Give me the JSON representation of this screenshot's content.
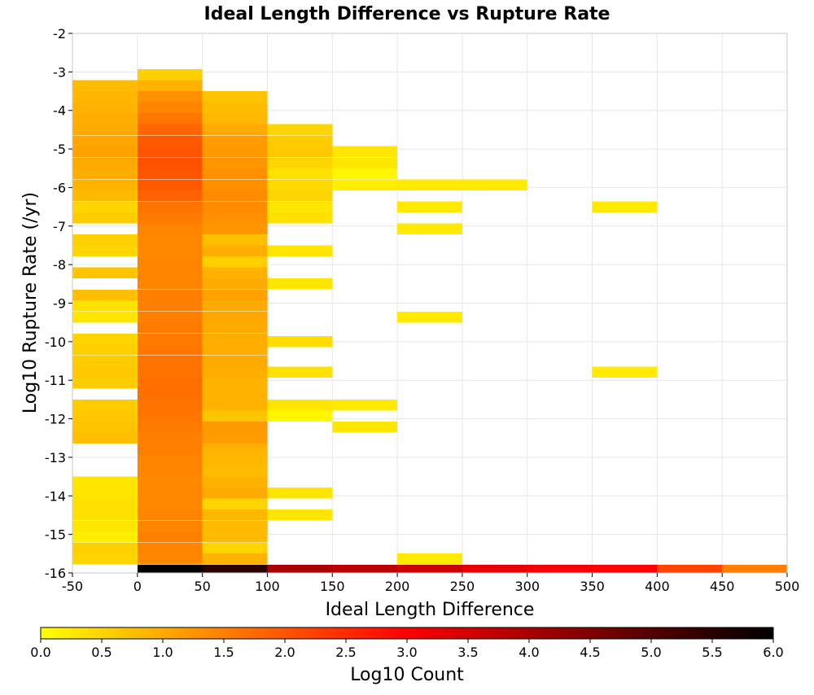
{
  "chart_data": {
    "type": "heatmap",
    "title": "Ideal Length Difference vs Rupture Rate",
    "xlabel": "Ideal Length Difference",
    "ylabel": "Log10 Rupture Rate (/yr)",
    "xlim": [
      -50,
      500
    ],
    "ylim": [
      -16,
      -2
    ],
    "x_ticks": [
      "-50",
      "0",
      "50",
      "100",
      "150",
      "200",
      "250",
      "300",
      "350",
      "400",
      "450",
      "500"
    ],
    "y_ticks": [
      "-2",
      "-3",
      "-4",
      "-5",
      "-6",
      "-7",
      "-8",
      "-9",
      "-10",
      "-11",
      "-12",
      "-13",
      "-14",
      "-15",
      "-16"
    ],
    "grid": true,
    "x_bin_width": 50,
    "y_bin_height": 0.2857,
    "colorbar": {
      "label": "Log10 Count",
      "range": [
        0.0,
        6.0
      ],
      "ticks": [
        "0.0",
        "0.5",
        "1.0",
        "1.5",
        "2.0",
        "2.5",
        "3.0",
        "3.5",
        "4.0",
        "4.5",
        "5.0",
        "5.5",
        "6.0"
      ],
      "colors": [
        "#ffff00",
        "#ff0000",
        "#000000"
      ]
    },
    "columns": [
      {
        "x": -25,
        "cells": [
          {
            "y": -3.36,
            "v": 0.8
          },
          {
            "y": -3.64,
            "v": 0.85
          },
          {
            "y": -3.93,
            "v": 0.9
          },
          {
            "y": -4.21,
            "v": 0.95
          },
          {
            "y": -4.5,
            "v": 1.0
          },
          {
            "y": -4.79,
            "v": 1.05
          },
          {
            "y": -5.07,
            "v": 1.1
          },
          {
            "y": -5.36,
            "v": 1.0
          },
          {
            "y": -5.64,
            "v": 0.95
          },
          {
            "y": -5.93,
            "v": 0.9
          },
          {
            "y": -6.21,
            "v": 0.8
          },
          {
            "y": -6.5,
            "v": 0.5
          },
          {
            "y": -6.79,
            "v": 0.6
          },
          {
            "y": -7.36,
            "v": 0.55
          },
          {
            "y": -7.64,
            "v": 0.5
          },
          {
            "y": -8.21,
            "v": 0.7
          },
          {
            "y": -8.79,
            "v": 0.75
          },
          {
            "y": -9.07,
            "v": 0.35
          },
          {
            "y": -9.36,
            "v": 0.3
          },
          {
            "y": -9.93,
            "v": 0.5
          },
          {
            "y": -10.21,
            "v": 0.55
          },
          {
            "y": -10.5,
            "v": 0.6
          },
          {
            "y": -10.79,
            "v": 0.65
          },
          {
            "y": -11.07,
            "v": 0.6
          },
          {
            "y": -11.64,
            "v": 0.6
          },
          {
            "y": -11.93,
            "v": 0.65
          },
          {
            "y": -12.21,
            "v": 0.7
          },
          {
            "y": -12.5,
            "v": 0.75
          },
          {
            "y": -13.64,
            "v": 0.3
          },
          {
            "y": -13.93,
            "v": 0.3
          },
          {
            "y": -14.21,
            "v": 0.35
          },
          {
            "y": -14.5,
            "v": 0.35
          },
          {
            "y": -14.79,
            "v": 0.3
          },
          {
            "y": -15.07,
            "v": 0.2
          },
          {
            "y": -15.36,
            "v": 0.55
          },
          {
            "y": -15.64,
            "v": 0.5
          }
        ]
      },
      {
        "x": 25,
        "cells": [
          {
            "y": -3.07,
            "v": 0.55
          },
          {
            "y": -3.36,
            "v": 0.9
          },
          {
            "y": -3.64,
            "v": 1.3
          },
          {
            "y": -3.93,
            "v": 1.45
          },
          {
            "y": -4.21,
            "v": 1.6
          },
          {
            "y": -4.5,
            "v": 1.8
          },
          {
            "y": -4.79,
            "v": 1.95
          },
          {
            "y": -5.07,
            "v": 2.0
          },
          {
            "y": -5.36,
            "v": 2.05
          },
          {
            "y": -5.64,
            "v": 2.0
          },
          {
            "y": -5.93,
            "v": 1.95
          },
          {
            "y": -6.21,
            "v": 1.85
          },
          {
            "y": -6.5,
            "v": 1.65
          },
          {
            "y": -6.79,
            "v": 1.55
          },
          {
            "y": -7.07,
            "v": 1.45
          },
          {
            "y": -7.36,
            "v": 1.4
          },
          {
            "y": -7.64,
            "v": 1.4
          },
          {
            "y": -7.93,
            "v": 1.45
          },
          {
            "y": -8.21,
            "v": 1.45
          },
          {
            "y": -8.5,
            "v": 1.45
          },
          {
            "y": -8.79,
            "v": 1.5
          },
          {
            "y": -9.07,
            "v": 1.5
          },
          {
            "y": -9.36,
            "v": 1.5
          },
          {
            "y": -9.64,
            "v": 1.55
          },
          {
            "y": -9.93,
            "v": 1.55
          },
          {
            "y": -10.21,
            "v": 1.6
          },
          {
            "y": -10.5,
            "v": 1.65
          },
          {
            "y": -10.79,
            "v": 1.65
          },
          {
            "y": -11.07,
            "v": 1.7
          },
          {
            "y": -11.36,
            "v": 1.7
          },
          {
            "y": -11.64,
            "v": 1.65
          },
          {
            "y": -11.93,
            "v": 1.6
          },
          {
            "y": -12.21,
            "v": 1.55
          },
          {
            "y": -12.5,
            "v": 1.5
          },
          {
            "y": -12.79,
            "v": 1.5
          },
          {
            "y": -13.07,
            "v": 1.45
          },
          {
            "y": -13.36,
            "v": 1.45
          },
          {
            "y": -13.64,
            "v": 1.4
          },
          {
            "y": -13.93,
            "v": 1.4
          },
          {
            "y": -14.21,
            "v": 1.4
          },
          {
            "y": -14.5,
            "v": 1.45
          },
          {
            "y": -14.79,
            "v": 1.45
          },
          {
            "y": -15.07,
            "v": 1.5
          },
          {
            "y": -15.36,
            "v": 1.45
          },
          {
            "y": -15.64,
            "v": 1.4
          },
          {
            "y": -15.93,
            "v": 6.0
          }
        ]
      },
      {
        "x": 75,
        "cells": [
          {
            "y": -3.64,
            "v": 0.7
          },
          {
            "y": -3.93,
            "v": 0.8
          },
          {
            "y": -4.21,
            "v": 0.85
          },
          {
            "y": -4.5,
            "v": 1.0
          },
          {
            "y": -4.79,
            "v": 1.15
          },
          {
            "y": -5.07,
            "v": 1.2
          },
          {
            "y": -5.36,
            "v": 1.25
          },
          {
            "y": -5.64,
            "v": 1.3
          },
          {
            "y": -5.93,
            "v": 1.3
          },
          {
            "y": -6.21,
            "v": 1.35
          },
          {
            "y": -6.5,
            "v": 1.35
          },
          {
            "y": -6.79,
            "v": 1.3
          },
          {
            "y": -7.07,
            "v": 1.25
          },
          {
            "y": -7.36,
            "v": 0.75
          },
          {
            "y": -7.64,
            "v": 0.95
          },
          {
            "y": -7.93,
            "v": 0.55
          },
          {
            "y": -8.21,
            "v": 0.9
          },
          {
            "y": -8.5,
            "v": 1.0
          },
          {
            "y": -8.79,
            "v": 1.1
          },
          {
            "y": -9.07,
            "v": 1.0
          },
          {
            "y": -9.36,
            "v": 1.05
          },
          {
            "y": -9.64,
            "v": 1.0
          },
          {
            "y": -9.93,
            "v": 0.95
          },
          {
            "y": -10.21,
            "v": 0.95
          },
          {
            "y": -10.5,
            "v": 1.0
          },
          {
            "y": -10.79,
            "v": 0.95
          },
          {
            "y": -11.07,
            "v": 0.9
          },
          {
            "y": -11.36,
            "v": 0.9
          },
          {
            "y": -11.64,
            "v": 0.9
          },
          {
            "y": -11.93,
            "v": 0.7
          },
          {
            "y": -12.21,
            "v": 1.2
          },
          {
            "y": -12.5,
            "v": 1.15
          },
          {
            "y": -12.79,
            "v": 0.9
          },
          {
            "y": -13.07,
            "v": 0.85
          },
          {
            "y": -13.36,
            "v": 0.8
          },
          {
            "y": -13.64,
            "v": 0.9
          },
          {
            "y": -13.93,
            "v": 1.0
          },
          {
            "y": -14.21,
            "v": 0.5
          },
          {
            "y": -14.5,
            "v": 0.85
          },
          {
            "y": -14.79,
            "v": 0.8
          },
          {
            "y": -15.07,
            "v": 0.8
          },
          {
            "y": -15.36,
            "v": 0.5
          },
          {
            "y": -15.64,
            "v": 0.9
          },
          {
            "y": -15.93,
            "v": 5.5
          }
        ]
      },
      {
        "x": 125,
        "cells": [
          {
            "y": -4.5,
            "v": 0.5
          },
          {
            "y": -4.79,
            "v": 0.6
          },
          {
            "y": -5.07,
            "v": 0.65
          },
          {
            "y": -5.36,
            "v": 0.5
          },
          {
            "y": -5.64,
            "v": 0.35
          },
          {
            "y": -5.93,
            "v": 0.45
          },
          {
            "y": -6.21,
            "v": 0.5
          },
          {
            "y": -6.5,
            "v": 0.3
          },
          {
            "y": -6.79,
            "v": 0.35
          },
          {
            "y": -7.64,
            "v": 0.3
          },
          {
            "y": -8.5,
            "v": 0.3
          },
          {
            "y": -10.0,
            "v": 0.4
          },
          {
            "y": -10.79,
            "v": 0.35
          },
          {
            "y": -11.64,
            "v": 0.3
          },
          {
            "y": -11.93,
            "v": 0.1
          },
          {
            "y": -13.93,
            "v": 0.3
          },
          {
            "y": -14.5,
            "v": 0.3
          },
          {
            "y": -15.93,
            "v": 4.0
          }
        ]
      },
      {
        "x": 175,
        "cells": [
          {
            "y": -5.07,
            "v": 0.3
          },
          {
            "y": -5.36,
            "v": 0.3
          },
          {
            "y": -5.64,
            "v": 0.1
          },
          {
            "y": -5.93,
            "v": 0.2
          },
          {
            "y": -11.64,
            "v": 0.25
          },
          {
            "y": -12.21,
            "v": 0.3
          },
          {
            "y": -15.93,
            "v": 3.8
          }
        ]
      },
      {
        "x": 225,
        "cells": [
          {
            "y": -5.93,
            "v": 0.25
          },
          {
            "y": -6.5,
            "v": 0.25
          },
          {
            "y": -7.07,
            "v": 0.25
          },
          {
            "y": -9.36,
            "v": 0.25
          },
          {
            "y": -15.64,
            "v": 0.25
          },
          {
            "y": -15.93,
            "v": 3.6
          }
        ]
      },
      {
        "x": 275,
        "cells": [
          {
            "y": -5.93,
            "v": 0.25
          },
          {
            "y": -15.93,
            "v": 3.3
          }
        ]
      },
      {
        "x": 325,
        "cells": [
          {
            "y": -15.93,
            "v": 3.1
          }
        ]
      },
      {
        "x": 375,
        "cells": [
          {
            "y": -6.5,
            "v": 0.25
          },
          {
            "y": -10.79,
            "v": 0.25
          },
          {
            "y": -15.93,
            "v": 3.0
          }
        ]
      },
      {
        "x": 425,
        "cells": [
          {
            "y": -15.93,
            "v": 2.2
          }
        ]
      },
      {
        "x": 475,
        "cells": [
          {
            "y": -15.93,
            "v": 1.5
          }
        ]
      }
    ]
  }
}
